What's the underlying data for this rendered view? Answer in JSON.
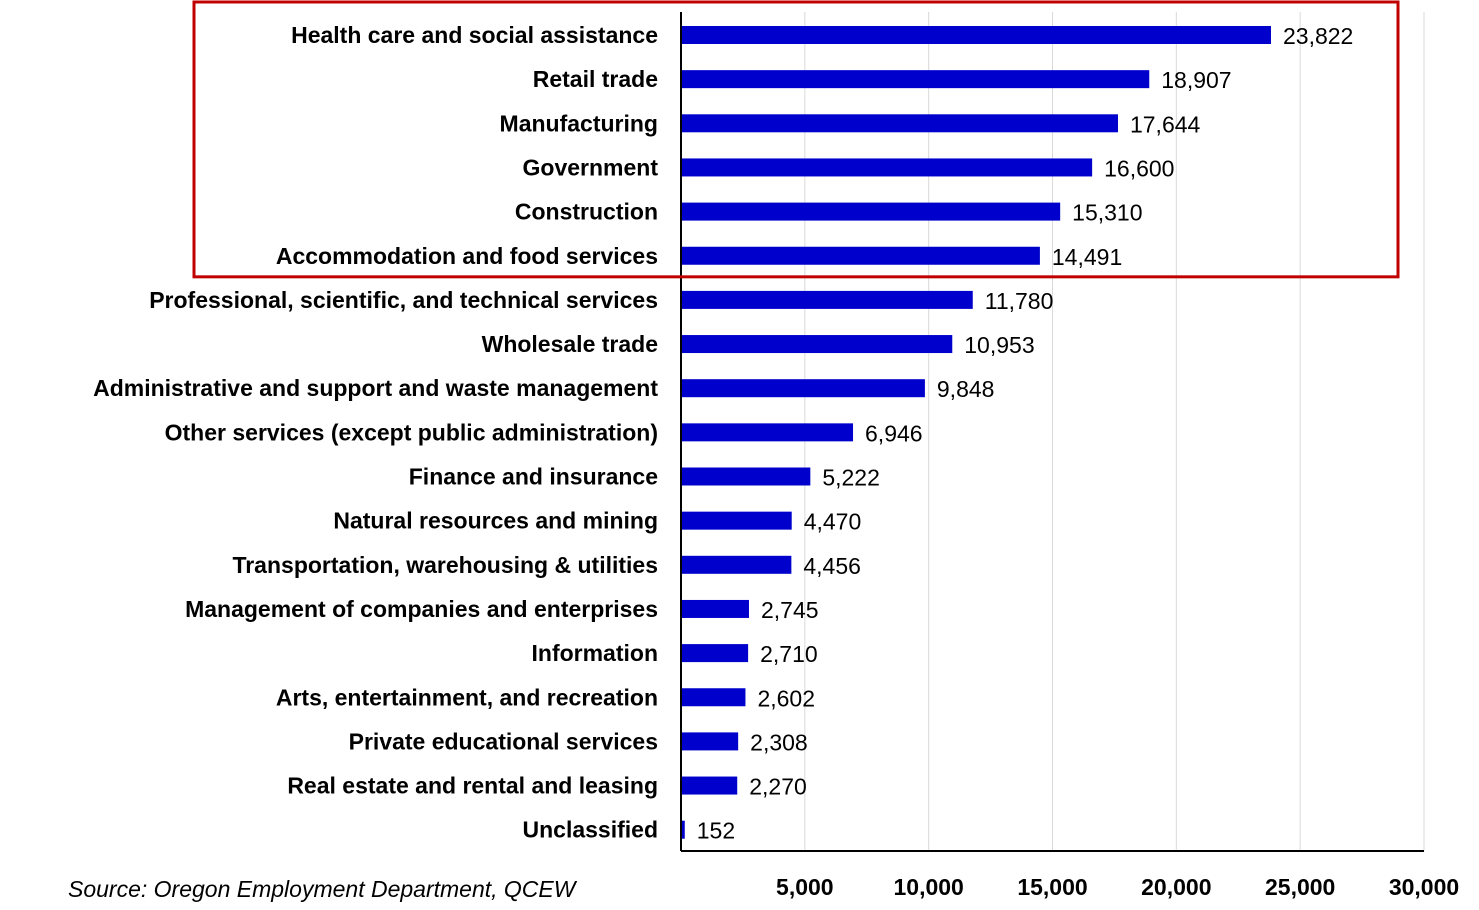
{
  "chart_data": {
    "type": "bar",
    "orientation": "horizontal",
    "categories": [
      "Health care and social assistance",
      "Retail trade",
      "Manufacturing",
      "Government",
      "Construction",
      "Accommodation and food services",
      "Professional, scientific, and technical services",
      "Wholesale trade",
      "Administrative and support and waste management",
      "Other services (except public administration)",
      "Finance and insurance",
      "Natural resources and mining",
      "Transportation, warehousing & utilities",
      "Management of companies and enterprises",
      "Information",
      "Arts, entertainment, and recreation",
      "Private educational services",
      "Real estate and rental and leasing",
      "Unclassified"
    ],
    "values": [
      23822,
      18907,
      17644,
      16600,
      15310,
      14491,
      11780,
      10953,
      9848,
      6946,
      5222,
      4470,
      4456,
      2745,
      2710,
      2602,
      2308,
      2270,
      152
    ],
    "value_labels": [
      "23,822",
      "18,907",
      "17,644",
      "16,600",
      "15,310",
      "14,491",
      "11,780",
      "10,953",
      "9,848",
      "6,946",
      "5,222",
      "4,470",
      "4,456",
      "2,745",
      "2,710",
      "2,602",
      "2,308",
      "2,270",
      "152"
    ],
    "xlim": [
      0,
      30000
    ],
    "xticks": [
      5000,
      10000,
      15000,
      20000,
      25000,
      30000
    ],
    "xtick_labels": [
      "5,000",
      "10,000",
      "15,000",
      "20,000",
      "25,000",
      "30,000"
    ],
    "grid": "vertical",
    "bar_color": "#0000CC",
    "highlight": {
      "categories_top_n": 6,
      "color": "#C00000"
    },
    "source_note": "Source: Oregon Employment Department, QCEW"
  }
}
